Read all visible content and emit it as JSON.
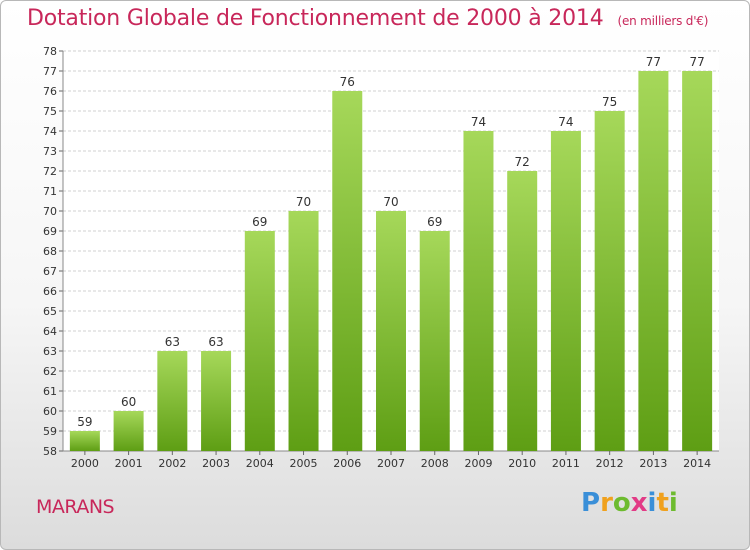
{
  "title": "Dotation Globale de Fonctionnement de 2000 à 2014",
  "subtitle": "(en milliers d'€)",
  "commune": "MARANS",
  "logo": {
    "letters": [
      "P",
      "r",
      "o",
      "x",
      "i",
      "t",
      "i"
    ],
    "colors": [
      "#3a8fd8",
      "#f0a11d",
      "#6dbb2f",
      "#e23b86",
      "#3a8fd8",
      "#f0a11d",
      "#6dbb2f"
    ]
  },
  "colors": {
    "title": "#c8275a",
    "bar_top": "#a6d85a",
    "bar_bottom": "#5e9e14",
    "grid": "#d0d0d0"
  },
  "chart_data": {
    "type": "bar",
    "title": "Dotation Globale de Fonctionnement de 2000 à 2014",
    "subtitle": "(en milliers d'€)",
    "categories": [
      "2000",
      "2001",
      "2002",
      "2003",
      "2004",
      "2005",
      "2006",
      "2007",
      "2008",
      "2009",
      "2010",
      "2011",
      "2012",
      "2013",
      "2014"
    ],
    "values": [
      59,
      60,
      63,
      63,
      69,
      70,
      76,
      70,
      69,
      74,
      72,
      74,
      75,
      77,
      77
    ],
    "data_labels": [
      "59",
      "60",
      "63",
      "63",
      "69",
      "70",
      "76",
      "70",
      "69",
      "74",
      "72",
      "74",
      "75",
      "77",
      "77"
    ],
    "ylim": [
      58,
      78
    ],
    "yticks": [
      "58",
      "59",
      "60",
      "61",
      "62",
      "63",
      "64",
      "65",
      "66",
      "67",
      "68",
      "69",
      "70",
      "71",
      "72",
      "73",
      "74",
      "75",
      "76",
      "77",
      "78"
    ],
    "grid": true,
    "xlabel": "",
    "ylabel": ""
  }
}
